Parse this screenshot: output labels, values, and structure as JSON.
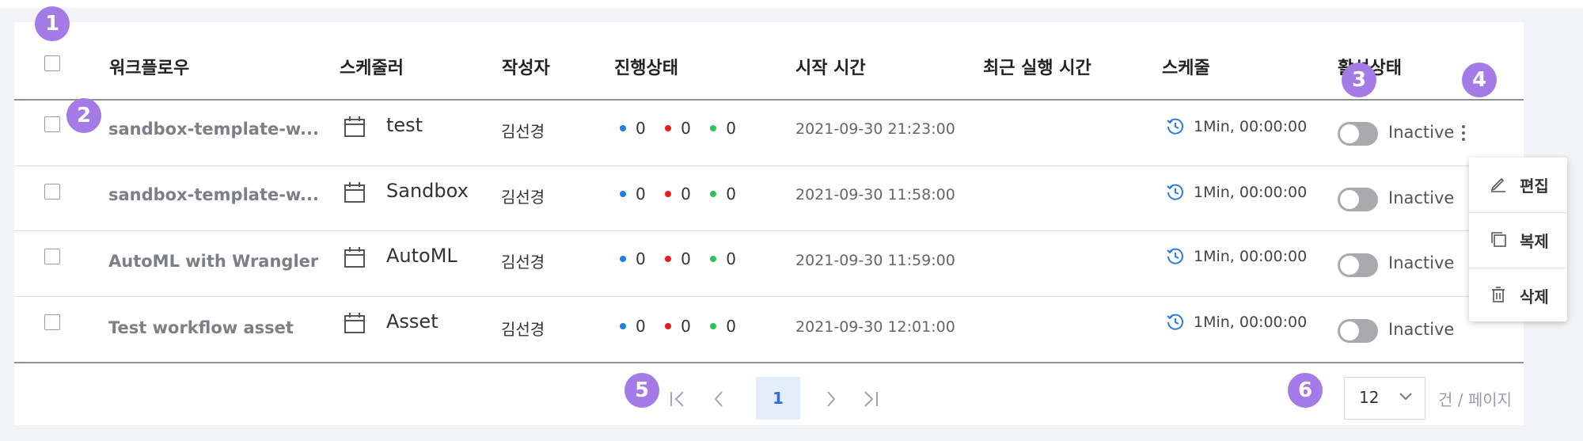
{
  "header": {
    "workflow": "워크플로우",
    "scheduler": "스케줄러",
    "author": "작성자",
    "progress": "진행상태",
    "start_time": "시작 시간",
    "last_run": "최근 실행 시간",
    "schedule": "스케줄",
    "active": "활성상태"
  },
  "rows": [
    {
      "name": "sandbox-template-w...",
      "scheduler": "test",
      "author": "김선경",
      "running": "0",
      "failed": "0",
      "success": "0",
      "start": "2021-09-30 21:23:00",
      "last_run": "",
      "schedule": "1Min, 00:00:00",
      "state": "Inactive"
    },
    {
      "name": "sandbox-template-w...",
      "scheduler": "Sandbox",
      "author": "김선경",
      "running": "0",
      "failed": "0",
      "success": "0",
      "start": "2021-09-30 11:58:00",
      "last_run": "",
      "schedule": "1Min, 00:00:00",
      "state": "Inactive"
    },
    {
      "name": "AutoML with Wrangler",
      "scheduler": "AutoML",
      "author": "김선경",
      "running": "0",
      "failed": "0",
      "success": "0",
      "start": "2021-09-30 11:59:00",
      "last_run": "",
      "schedule": "1Min, 00:00:00",
      "state": "Inactive"
    },
    {
      "name": "Test workflow asset",
      "scheduler": "Asset",
      "author": "김선경",
      "running": "0",
      "failed": "0",
      "success": "0",
      "start": "2021-09-30 12:01:00",
      "last_run": "",
      "schedule": "1Min, 00:00:00",
      "state": "Inactive"
    }
  ],
  "context_menu": {
    "edit": "편집",
    "copy": "복제",
    "delete": "삭제"
  },
  "pagination": {
    "current_page": "1",
    "page_size": "12",
    "per_page_label": "건 / 페이지"
  },
  "badges": [
    "1",
    "2",
    "3",
    "4",
    "5",
    "6"
  ],
  "colors": {
    "running": "#1e7fe6",
    "failed": "#e81c1c",
    "success": "#2fc25b",
    "badge": "#a47be6",
    "page_active_bg": "#e4eefb",
    "page_active_text": "#2d6fd8"
  }
}
